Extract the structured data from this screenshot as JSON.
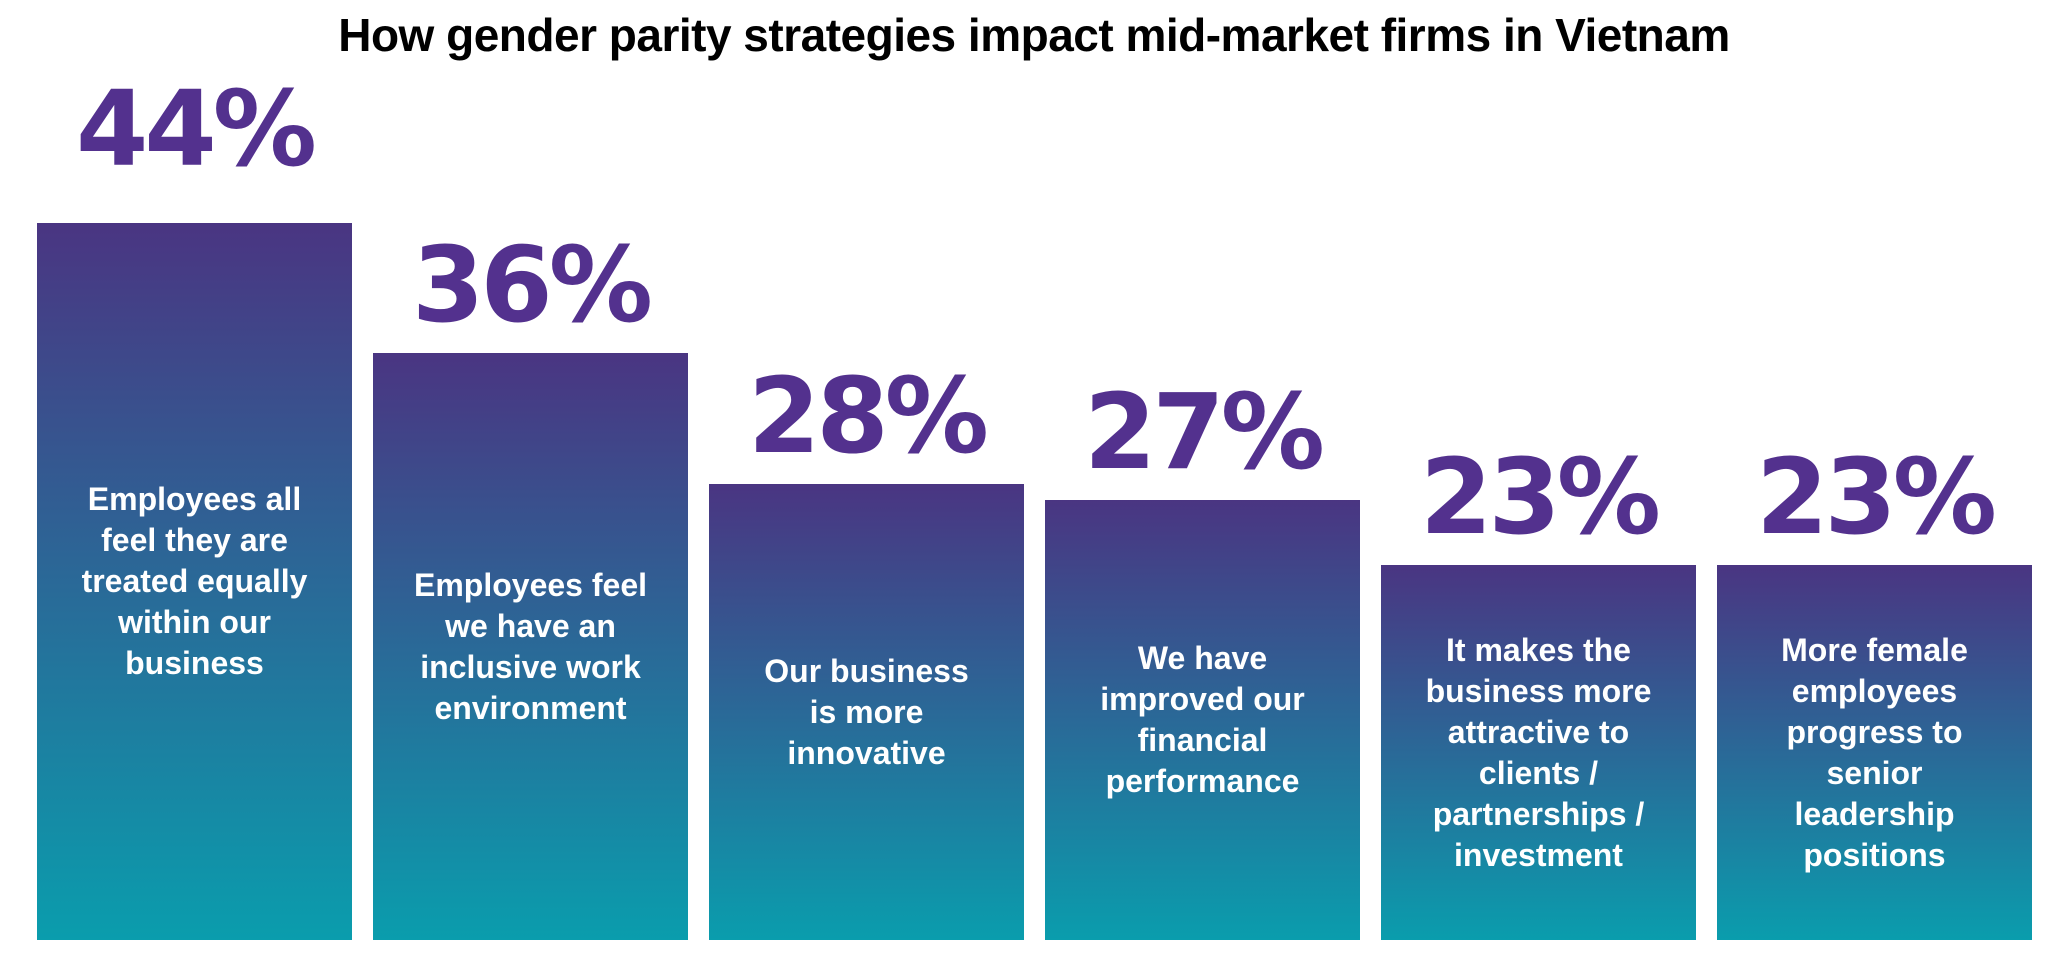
{
  "title": "How gender parity strategies impact mid-market firms in Vietnam",
  "chart_data": {
    "type": "bar",
    "title": "How gender parity strategies impact mid-market firms in Vietnam",
    "unit": "%",
    "orientation": "vertical",
    "grid": false,
    "axes_visible": false,
    "legend": "none",
    "value_label_position": "above-bar",
    "category_label_position": "inside-bar",
    "categories": [
      "Employees all feel they are treated equally within our business",
      "Employees feel we have an inclusive work environment",
      "Our business is more innovative",
      "We have improved our financial performance",
      "It makes the business more attractive to clients / partnerships / investment",
      "More female employees progress to senior leadership positions"
    ],
    "values": [
      44,
      36,
      28,
      27,
      23,
      23
    ],
    "ylim": [
      0,
      44
    ],
    "bars": [
      {
        "value": 44,
        "value_label": "44%",
        "label_lines": [
          "Employees all",
          "feel they are",
          "treated equally",
          "within our",
          "business"
        ]
      },
      {
        "value": 36,
        "value_label": "36%",
        "label_lines": [
          "Employees feel",
          "we have an",
          "inclusive work",
          "environment"
        ]
      },
      {
        "value": 28,
        "value_label": "28%",
        "label_lines": [
          "Our business",
          "is more",
          "innovative"
        ]
      },
      {
        "value": 27,
        "value_label": "27%",
        "label_lines": [
          "We have",
          "improved our",
          "financial",
          "performance"
        ]
      },
      {
        "value": 23,
        "value_label": "23%",
        "label_lines": [
          "It makes the",
          "business more",
          "attractive to",
          "clients /",
          "partnerships /",
          "investment"
        ]
      },
      {
        "value": 23,
        "value_label": "23%",
        "label_lines": [
          "More female",
          "employees",
          "progress to",
          "senior",
          "leadership",
          "positions"
        ]
      }
    ],
    "colors": {
      "bar_gradient_top": "#4A3582",
      "bar_gradient_bottom": "#0A9DAD",
      "value_label": "#53318E",
      "bar_text": "#FFFFFF",
      "title": "#000000",
      "background": "#FFFFFF"
    }
  }
}
